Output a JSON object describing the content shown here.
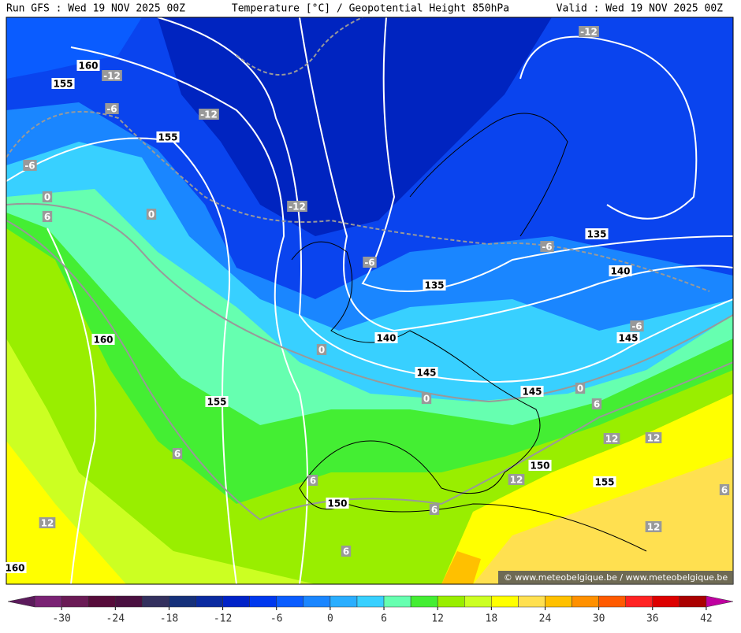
{
  "header": {
    "run": "Run GFS : Wed 19 NOV 2025 00Z",
    "title": "Temperature [°C] / Geopotential Height 850hPa",
    "valid": "Valid : Wed 19 NOV 2025 00Z"
  },
  "map": {
    "height_labels": [
      160,
      155,
      155,
      135,
      140,
      135,
      140,
      145,
      145,
      145,
      160,
      155,
      150,
      155,
      150,
      160
    ],
    "temperature_labels": [
      -12,
      -6,
      -12,
      -6,
      -12,
      -12,
      -6,
      -6,
      -6,
      0,
      0,
      6,
      0,
      0,
      0,
      6,
      12,
      12,
      12,
      6,
      6,
      6,
      6,
      12,
      12,
      6
    ],
    "watermark": "© www.meteobelgique.be / www.meteobelgique.be"
  },
  "colorbar": {
    "range": [
      -36,
      45
    ],
    "colors": [
      "#5c1a5c",
      "#7a2274",
      "#6a1a55",
      "#560c3a",
      "#4a1040",
      "#33305e",
      "#15307a",
      "#0a2aa0",
      "#0022c8",
      "#0038ee",
      "#0a5cff",
      "#1a86ff",
      "#2aaeff",
      "#38d0ff",
      "#66ffb0",
      "#44ee33",
      "#99ee00",
      "#ccff22",
      "#ffff00",
      "#ffe050",
      "#ffc000",
      "#ff9000",
      "#ff5a00",
      "#ff2222",
      "#dd0000",
      "#aa0000",
      "#c000a0"
    ],
    "ticks": [
      -30,
      -24,
      -18,
      -12,
      -6,
      0,
      6,
      12,
      18,
      24,
      30,
      36,
      42
    ]
  }
}
